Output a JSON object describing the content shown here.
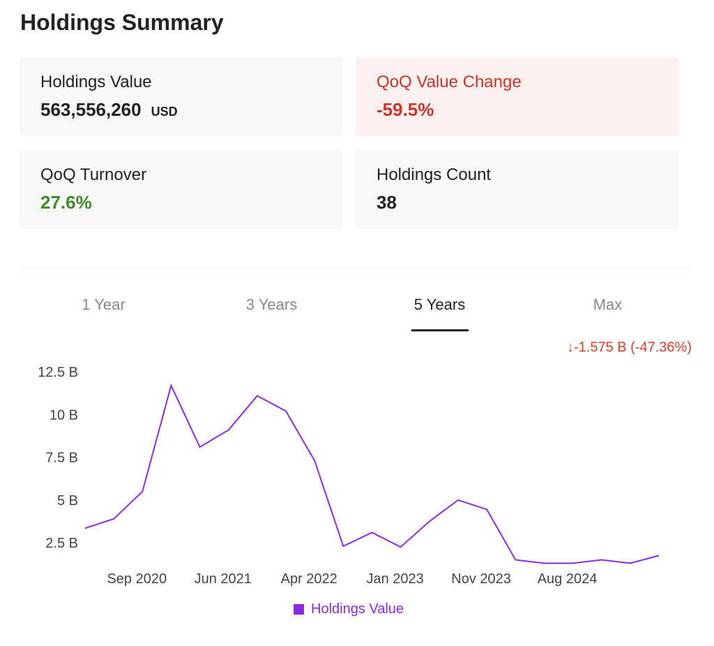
{
  "title": "Holdings Summary",
  "cards": {
    "value": {
      "label": "Holdings Value",
      "value": "563,556,260",
      "unit": "USD"
    },
    "qoq_change": {
      "label": "QoQ Value Change",
      "value": "-59.5%"
    },
    "turnover": {
      "label": "QoQ Turnover",
      "value": "27.6%"
    },
    "count": {
      "label": "Holdings Count",
      "value": "38"
    }
  },
  "tabs": [
    "1 Year",
    "3 Years",
    "5 Years",
    "Max"
  ],
  "active_tab": "5 Years",
  "change_text": "↓-1.575 B (-47.36%)",
  "colors": {
    "line": "#8a2be2",
    "negative": "#c9352b",
    "positive": "#3f8a2a"
  },
  "chart_data": {
    "type": "line",
    "series": [
      {
        "name": "Holdings Value",
        "values": [
          3.35,
          3.9,
          5.5,
          11.7,
          8.1,
          9.1,
          11.1,
          10.2,
          7.3,
          2.3,
          3.1,
          2.25,
          3.75,
          5.0,
          4.45,
          1.5,
          1.3,
          1.3,
          1.5,
          1.3,
          1.75
        ]
      }
    ],
    "x_tick_labels": [
      "Sep 2020",
      "Jun 2021",
      "Apr 2022",
      "Jan 2023",
      "Nov 2023",
      "Aug 2024"
    ],
    "x_tick_index": [
      2,
      5,
      8,
      11,
      14,
      17
    ],
    "y_ticks": [
      "12.5 B",
      "10 B",
      "7.5 B",
      "5 B",
      "2.5 B"
    ],
    "y_tick_values": [
      12.5,
      10,
      7.5,
      5,
      2.5
    ],
    "ylim": [
      0,
      12.5
    ],
    "legend": "bottom-center",
    "grid": false
  }
}
